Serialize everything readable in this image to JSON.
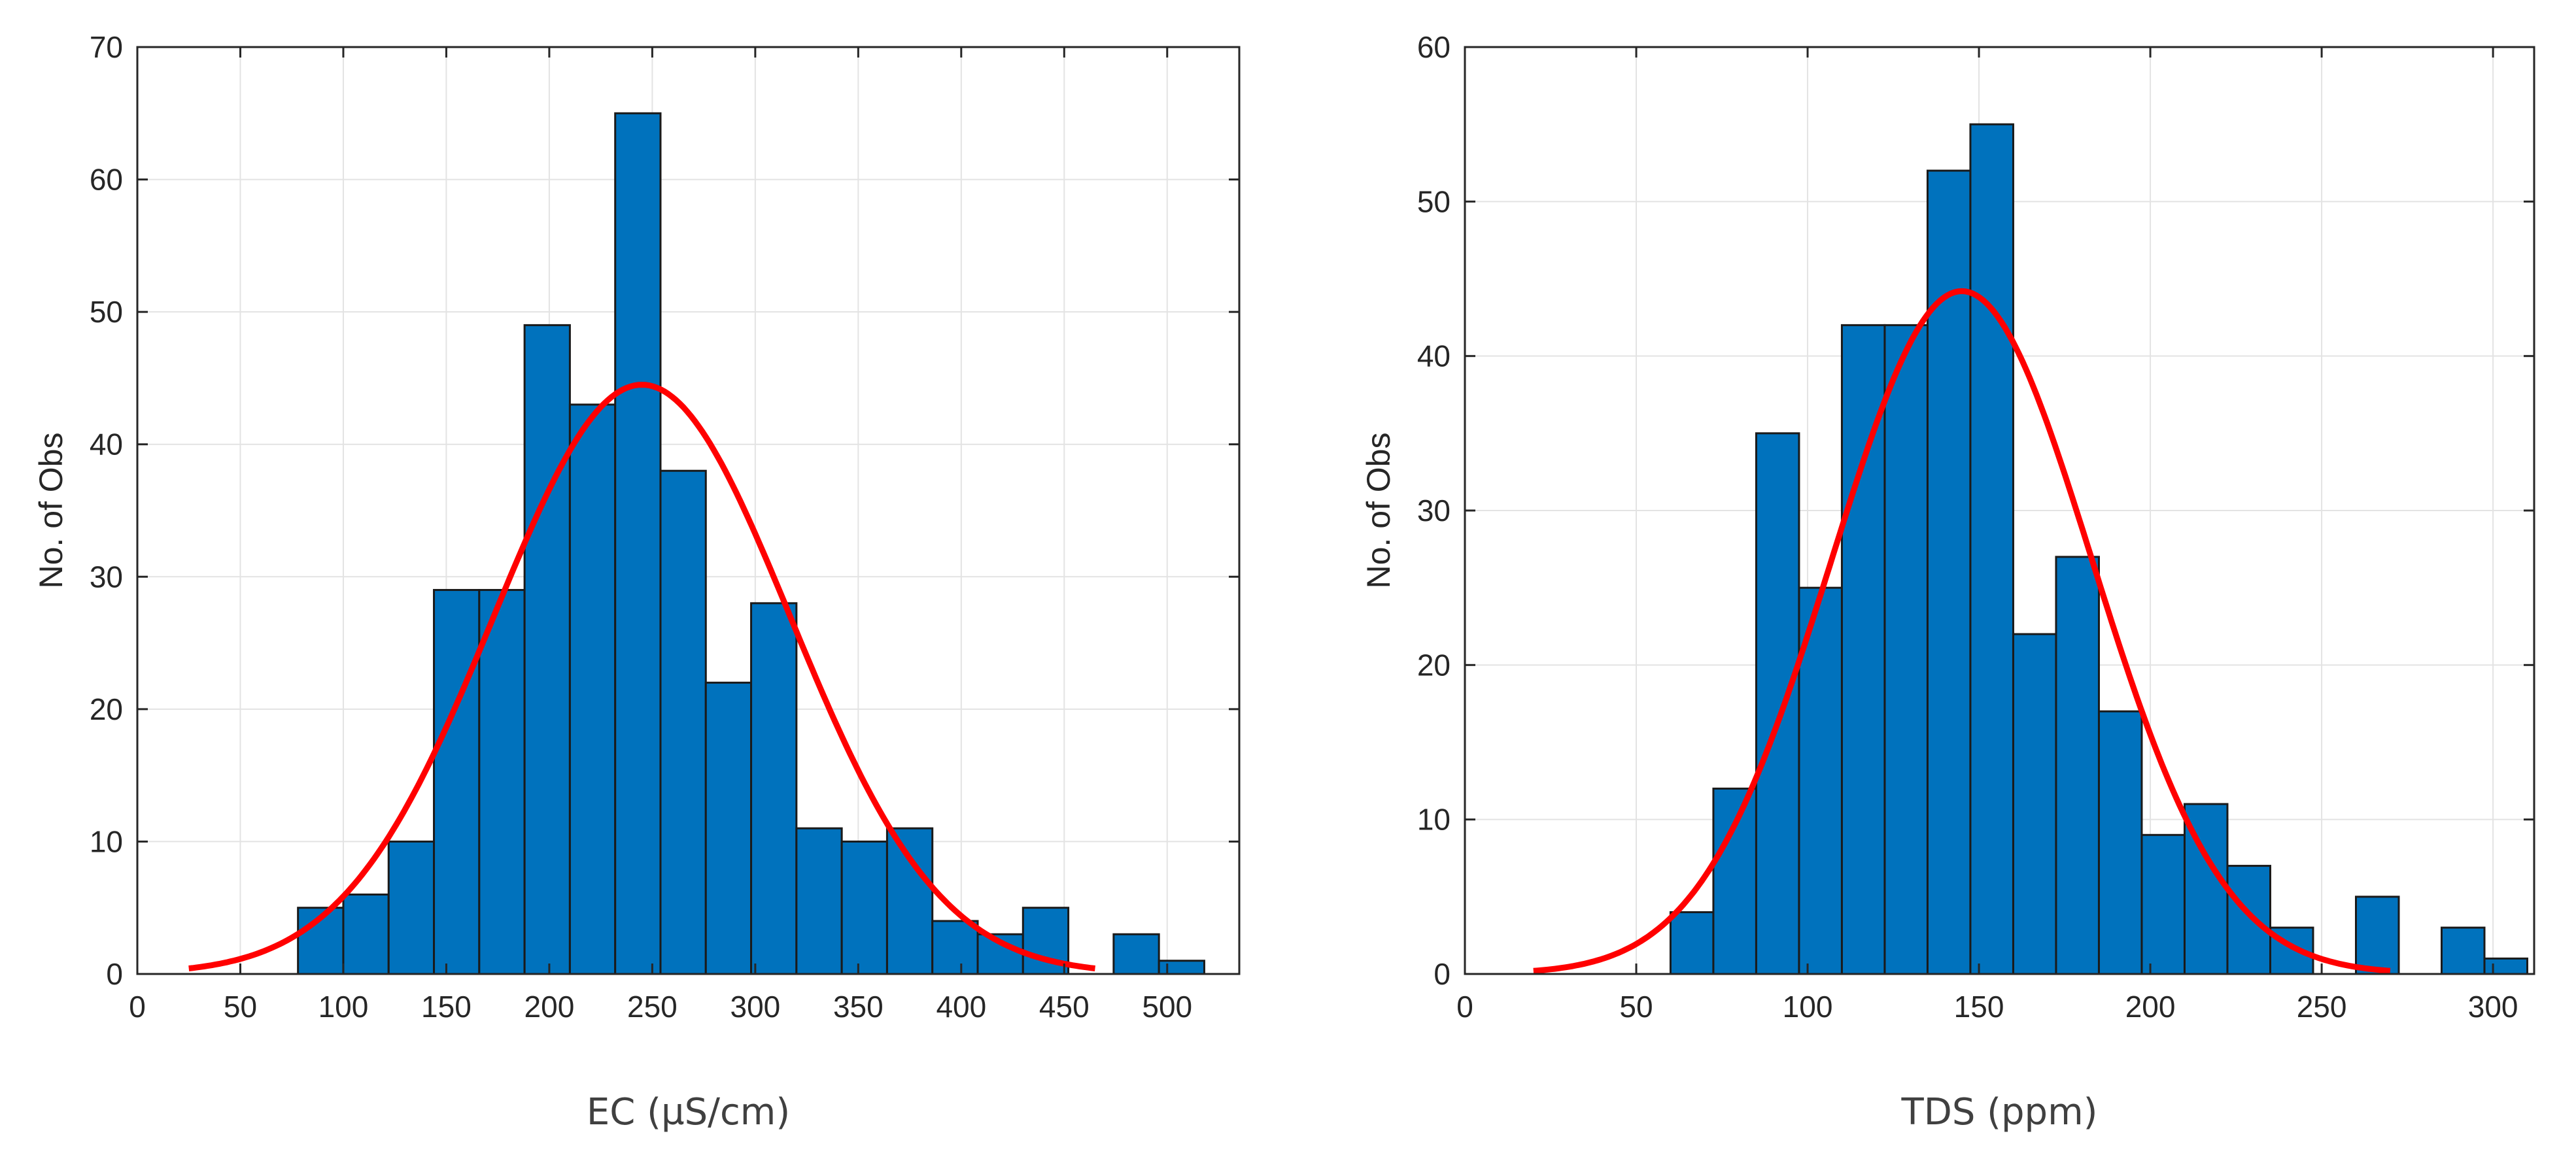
{
  "chart_data": [
    {
      "type": "bar",
      "subtype": "histogram-with-normal-fit",
      "title": "",
      "xlabel": "EC (µS/cm)",
      "ylabel": "No. of Obs",
      "xlim": [
        0,
        535
      ],
      "ylim": [
        0,
        70
      ],
      "xticks": [
        0,
        50,
        100,
        150,
        200,
        250,
        300,
        350,
        400,
        450,
        500
      ],
      "yticks": [
        0,
        10,
        20,
        30,
        40,
        50,
        60,
        70
      ],
      "grid": true,
      "bar_color": "#0072bd",
      "bar_edge_color": "#1a1a1a",
      "curve_color": "#ff0000",
      "bins": [
        {
          "x0": 78,
          "x1": 100,
          "count": 5
        },
        {
          "x0": 100,
          "x1": 122,
          "count": 6
        },
        {
          "x0": 122,
          "x1": 144,
          "count": 10
        },
        {
          "x0": 144,
          "x1": 166,
          "count": 29
        },
        {
          "x0": 166,
          "x1": 188,
          "count": 29
        },
        {
          "x0": 188,
          "x1": 210,
          "count": 49
        },
        {
          "x0": 210,
          "x1": 232,
          "count": 43
        },
        {
          "x0": 232,
          "x1": 254,
          "count": 65
        },
        {
          "x0": 254,
          "x1": 276,
          "count": 38
        },
        {
          "x0": 276,
          "x1": 298,
          "count": 22
        },
        {
          "x0": 298,
          "x1": 320,
          "count": 28
        },
        {
          "x0": 320,
          "x1": 342,
          "count": 11
        },
        {
          "x0": 342,
          "x1": 364,
          "count": 10
        },
        {
          "x0": 364,
          "x1": 386,
          "count": 11
        },
        {
          "x0": 386,
          "x1": 408,
          "count": 4
        },
        {
          "x0": 408,
          "x1": 430,
          "count": 3
        },
        {
          "x0": 430,
          "x1": 452,
          "count": 5
        },
        {
          "x0": 474,
          "x1": 496,
          "count": 3
        },
        {
          "x0": 496,
          "x1": 518,
          "count": 1
        }
      ],
      "fit": {
        "mean": 245,
        "sd": 72,
        "peak": 44.5,
        "x_from": 25,
        "x_to": 465
      }
    },
    {
      "type": "bar",
      "subtype": "histogram-with-normal-fit",
      "title": "",
      "xlabel": "TDS (ppm)",
      "ylabel": "No. of Obs",
      "xlim": [
        0,
        312
      ],
      "ylim": [
        0,
        60
      ],
      "xticks": [
        0,
        50,
        100,
        150,
        200,
        250,
        300
      ],
      "yticks": [
        0,
        10,
        20,
        30,
        40,
        50,
        60
      ],
      "grid": true,
      "bar_color": "#0072bd",
      "bar_edge_color": "#1a1a1a",
      "curve_color": "#ff0000",
      "bins": [
        {
          "x0": 60,
          "x1": 72.5,
          "count": 4
        },
        {
          "x0": 72.5,
          "x1": 85,
          "count": 12
        },
        {
          "x0": 85,
          "x1": 97.5,
          "count": 35
        },
        {
          "x0": 97.5,
          "x1": 110,
          "count": 25
        },
        {
          "x0": 110,
          "x1": 122.5,
          "count": 42
        },
        {
          "x0": 122.5,
          "x1": 135,
          "count": 42
        },
        {
          "x0": 135,
          "x1": 147.5,
          "count": 52
        },
        {
          "x0": 147.5,
          "x1": 160,
          "count": 55
        },
        {
          "x0": 160,
          "x1": 172.5,
          "count": 22
        },
        {
          "x0": 172.5,
          "x1": 185,
          "count": 27
        },
        {
          "x0": 185,
          "x1": 197.5,
          "count": 17
        },
        {
          "x0": 197.5,
          "x1": 210,
          "count": 9
        },
        {
          "x0": 210,
          "x1": 222.5,
          "count": 11
        },
        {
          "x0": 222.5,
          "x1": 235,
          "count": 7
        },
        {
          "x0": 235,
          "x1": 247.5,
          "count": 3
        },
        {
          "x0": 260,
          "x1": 272.5,
          "count": 5
        },
        {
          "x0": 285,
          "x1": 297.5,
          "count": 3
        },
        {
          "x0": 297.5,
          "x1": 310,
          "count": 1
        }
      ],
      "fit": {
        "mean": 145,
        "sd": 38,
        "peak": 44.2,
        "x_from": 20,
        "x_to": 270
      }
    }
  ]
}
